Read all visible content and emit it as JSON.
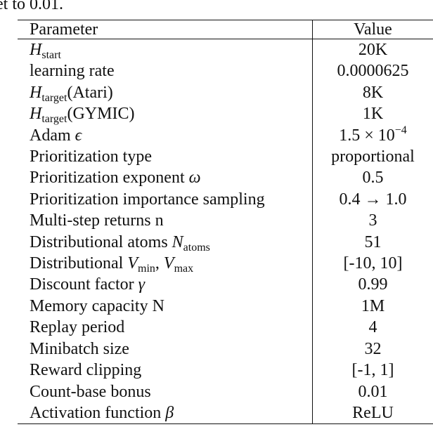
{
  "caption": "et to 0.01.",
  "table": {
    "header": [
      "Parameter",
      "Value"
    ],
    "rows": [
      [
        [
          {
            "t": "H",
            "f": "i"
          },
          {
            "t": "start",
            "f": "sub"
          }
        ],
        [
          {
            "t": "20K"
          }
        ]
      ],
      [
        [
          {
            "t": "learning rate"
          }
        ],
        [
          {
            "t": "0.0000625"
          }
        ]
      ],
      [
        [
          {
            "t": "H",
            "f": "i"
          },
          {
            "t": "target",
            "f": "sub"
          },
          {
            "t": "(Atari)"
          }
        ],
        [
          {
            "t": "8K"
          }
        ]
      ],
      [
        [
          {
            "t": "H",
            "f": "i"
          },
          {
            "t": "target",
            "f": "sub"
          },
          {
            "t": "(GYMIC)"
          }
        ],
        [
          {
            "t": "1K"
          }
        ]
      ],
      [
        [
          {
            "t": "Adam "
          },
          {
            "t": "ϵ",
            "f": "i"
          }
        ],
        [
          {
            "t": "1.5 × 10"
          },
          {
            "t": "−4",
            "f": "sup"
          }
        ]
      ],
      [
        [
          {
            "t": "Prioritization type"
          }
        ],
        [
          {
            "t": "proportional"
          }
        ]
      ],
      [
        [
          {
            "t": "Prioritization exponent "
          },
          {
            "t": "ω",
            "f": "i"
          }
        ],
        [
          {
            "t": "0.5"
          }
        ]
      ],
      [
        [
          {
            "t": "Prioritization importance sampling"
          }
        ],
        [
          {
            "t": "0.4 → 1.0"
          }
        ]
      ],
      [
        [
          {
            "t": "Multi-step returns n"
          }
        ],
        [
          {
            "t": "3"
          }
        ]
      ],
      [
        [
          {
            "t": "Distributional atoms "
          },
          {
            "t": "N",
            "f": "i"
          },
          {
            "t": "atoms",
            "f": "sub"
          }
        ],
        [
          {
            "t": "51"
          }
        ]
      ],
      [
        [
          {
            "t": "Distributional "
          },
          {
            "t": "V",
            "f": "i"
          },
          {
            "t": "min",
            "f": "sub"
          },
          {
            "t": ", "
          },
          {
            "t": "V",
            "f": "i"
          },
          {
            "t": "max",
            "f": "sub"
          }
        ],
        [
          {
            "t": "[-10, 10]"
          }
        ]
      ],
      [
        [
          {
            "t": "Discount factor "
          },
          {
            "t": "γ",
            "f": "i"
          }
        ],
        [
          {
            "t": "0.99"
          }
        ]
      ],
      [
        [
          {
            "t": "Memory capacity N"
          }
        ],
        [
          {
            "t": "1M"
          }
        ]
      ],
      [
        [
          {
            "t": "Replay period"
          }
        ],
        [
          {
            "t": "4"
          }
        ]
      ],
      [
        [
          {
            "t": "Minibatch size"
          }
        ],
        [
          {
            "t": "32"
          }
        ]
      ],
      [
        [
          {
            "t": "Reward clipping"
          }
        ],
        [
          {
            "t": "[-1, 1]"
          }
        ]
      ],
      [
        [
          {
            "t": "Count-base bonus"
          }
        ],
        [
          {
            "t": "0.01"
          }
        ]
      ],
      [
        [
          {
            "t": "Activation function "
          },
          {
            "t": "β",
            "f": "i"
          }
        ],
        [
          {
            "t": "ReLU"
          }
        ]
      ]
    ]
  }
}
